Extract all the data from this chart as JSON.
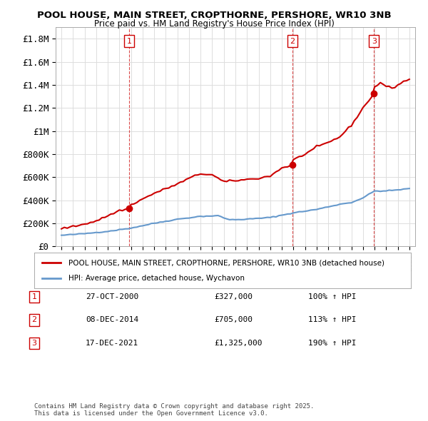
{
  "title": "POOL HOUSE, MAIN STREET, CROPTHORNE, PERSHORE, WR10 3NB",
  "subtitle": "Price paid vs. HM Land Registry's House Price Index (HPI)",
  "legend_property": "POOL HOUSE, MAIN STREET, CROPTHORNE, PERSHORE, WR10 3NB (detached house)",
  "legend_hpi": "HPI: Average price, detached house, Wychavon",
  "footer": "Contains HM Land Registry data © Crown copyright and database right 2025.\nThis data is licensed under the Open Government Licence v3.0.",
  "sales": [
    {
      "num": 1,
      "date": "27-OCT-2000",
      "price": 327000,
      "pct": "100%",
      "year": 2000.83
    },
    {
      "num": 2,
      "date": "08-DEC-2014",
      "price": 705000,
      "pct": "113%",
      "year": 2014.93
    },
    {
      "num": 3,
      "date": "17-DEC-2021",
      "price": 1325000,
      "pct": "190%",
      "year": 2021.95
    }
  ],
  "property_color": "#cc0000",
  "hpi_color": "#6699cc",
  "vline_color": "#cc0000",
  "xlim": [
    1994.5,
    2025.5
  ],
  "ylim": [
    0,
    1900000
  ],
  "yticks": [
    0,
    200000,
    400000,
    600000,
    800000,
    1000000,
    1200000,
    1400000,
    1600000,
    1800000
  ],
  "ytick_labels": [
    "£0",
    "£200K",
    "£400K",
    "£600K",
    "£800K",
    "£1M",
    "£1.2M",
    "£1.4M",
    "£1.6M",
    "£1.8M"
  ],
  "xticks": [
    1995,
    1996,
    1997,
    1998,
    1999,
    2000,
    2001,
    2002,
    2003,
    2004,
    2005,
    2006,
    2007,
    2008,
    2009,
    2010,
    2011,
    2012,
    2013,
    2014,
    2015,
    2016,
    2017,
    2018,
    2019,
    2020,
    2021,
    2022,
    2023,
    2024,
    2025
  ]
}
